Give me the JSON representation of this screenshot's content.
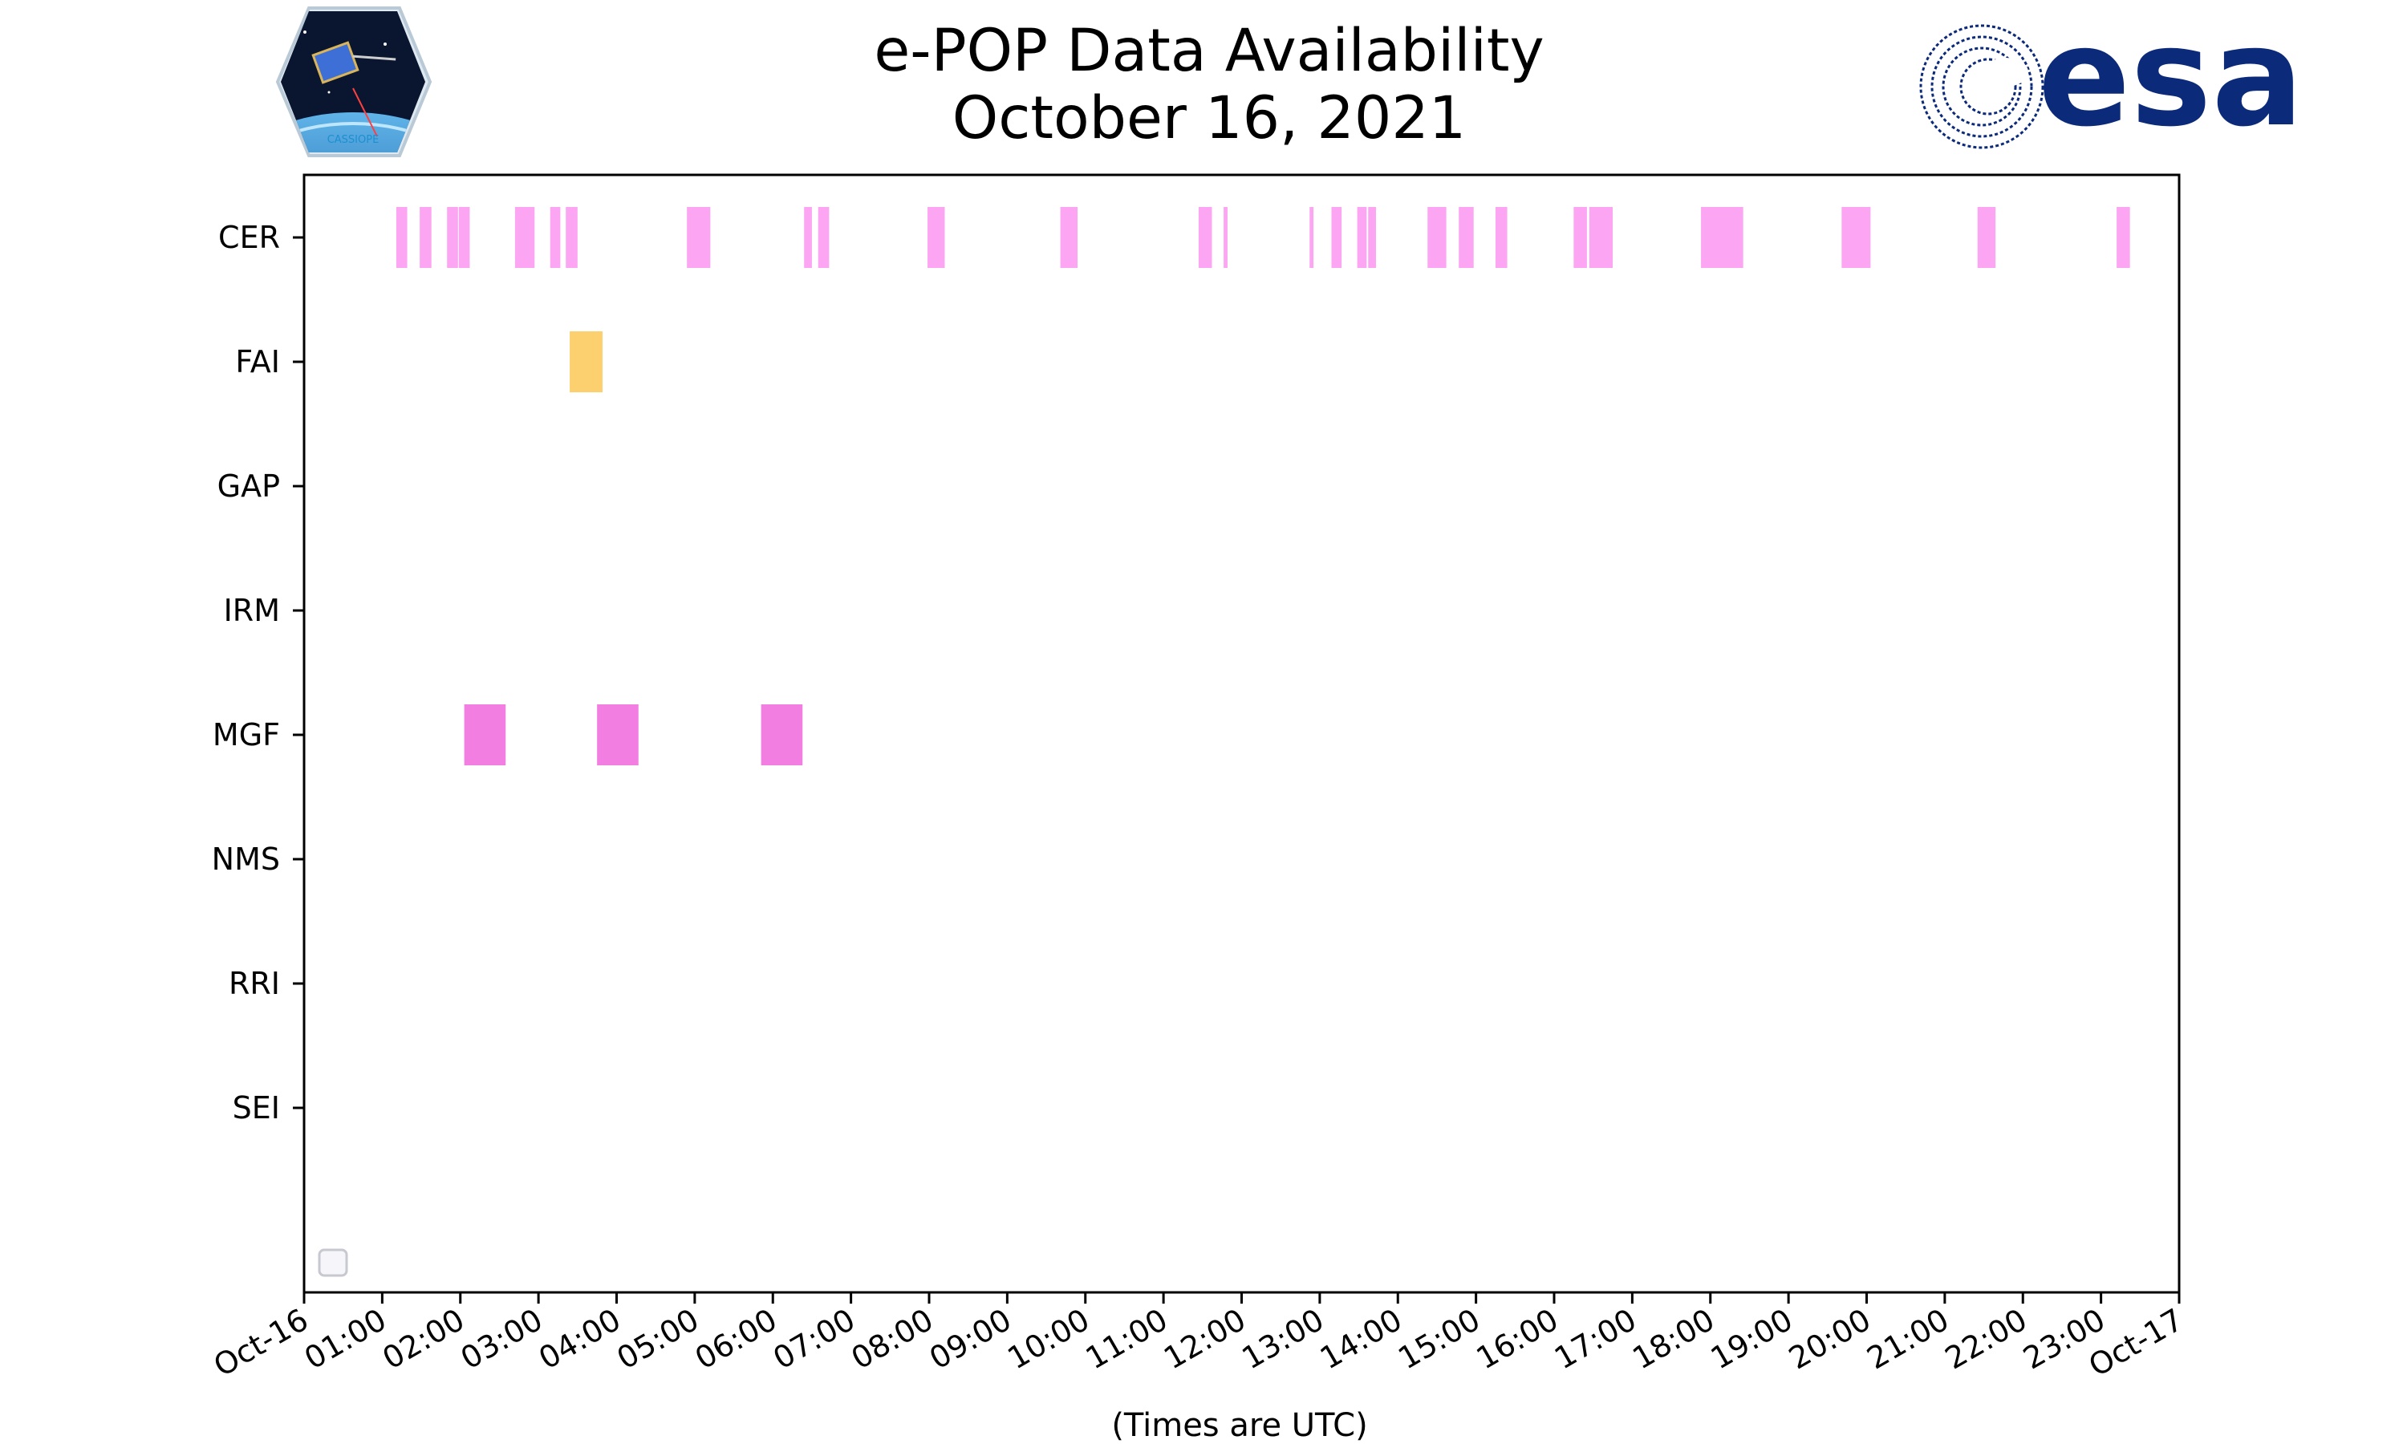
{
  "title": "e-POP Data Availability",
  "subtitle": "October 16, 2021",
  "logos": {
    "left": {
      "name": "cassiope-mission-logo",
      "text": "CASSIOPE"
    },
    "right": {
      "name": "esa-logo",
      "text": "esa"
    }
  },
  "chart_data": {
    "type": "timeline",
    "xlabel": "(Times are UTC)",
    "xlim_hours": [
      0,
      24
    ],
    "x_tick_labels": [
      "Oct-16",
      "01:00",
      "02:00",
      "03:00",
      "04:00",
      "05:00",
      "06:00",
      "07:00",
      "08:00",
      "09:00",
      "10:00",
      "11:00",
      "12:00",
      "13:00",
      "14:00",
      "15:00",
      "16:00",
      "17:00",
      "18:00",
      "19:00",
      "20:00",
      "21:00",
      "22:00",
      "23:00",
      "Oct-17"
    ],
    "grid": false,
    "legend": "bottom-left (empty)",
    "series": [
      {
        "name": "CER",
        "color": "#fca6f3",
        "intervals": [
          [
            1.18,
            1.32
          ],
          [
            1.48,
            1.63
          ],
          [
            1.83,
            1.97
          ],
          [
            1.98,
            2.12
          ],
          [
            2.7,
            2.95
          ],
          [
            3.15,
            3.28
          ],
          [
            3.35,
            3.5
          ],
          [
            4.9,
            5.2
          ],
          [
            6.4,
            6.5
          ],
          [
            6.58,
            6.72
          ],
          [
            7.98,
            8.2
          ],
          [
            9.68,
            9.9
          ],
          [
            11.45,
            11.62
          ],
          [
            11.77,
            11.82
          ],
          [
            12.87,
            12.92
          ],
          [
            13.15,
            13.28
          ],
          [
            13.48,
            13.6
          ],
          [
            13.62,
            13.72
          ],
          [
            14.38,
            14.62
          ],
          [
            14.78,
            14.97
          ],
          [
            15.25,
            15.4
          ],
          [
            16.25,
            16.42
          ],
          [
            16.45,
            16.75
          ],
          [
            17.88,
            18.42
          ],
          [
            19.68,
            20.05
          ],
          [
            21.42,
            21.65
          ],
          [
            23.2,
            23.37
          ]
        ]
      },
      {
        "name": "FAI",
        "color": "#fdd06f",
        "intervals": [
          [
            3.4,
            3.82
          ]
        ]
      },
      {
        "name": "GAP",
        "color": "#cccccc",
        "intervals": []
      },
      {
        "name": "IRM",
        "color": "#cccccc",
        "intervals": []
      },
      {
        "name": "MGF",
        "color": "#f27ee2",
        "intervals": [
          [
            2.05,
            2.58
          ],
          [
            3.75,
            4.28
          ],
          [
            5.85,
            6.38
          ]
        ]
      },
      {
        "name": "NMS",
        "color": "#cccccc",
        "intervals": []
      },
      {
        "name": "RRI",
        "color": "#cccccc",
        "intervals": []
      },
      {
        "name": "SEI",
        "color": "#cccccc",
        "intervals": []
      }
    ]
  }
}
